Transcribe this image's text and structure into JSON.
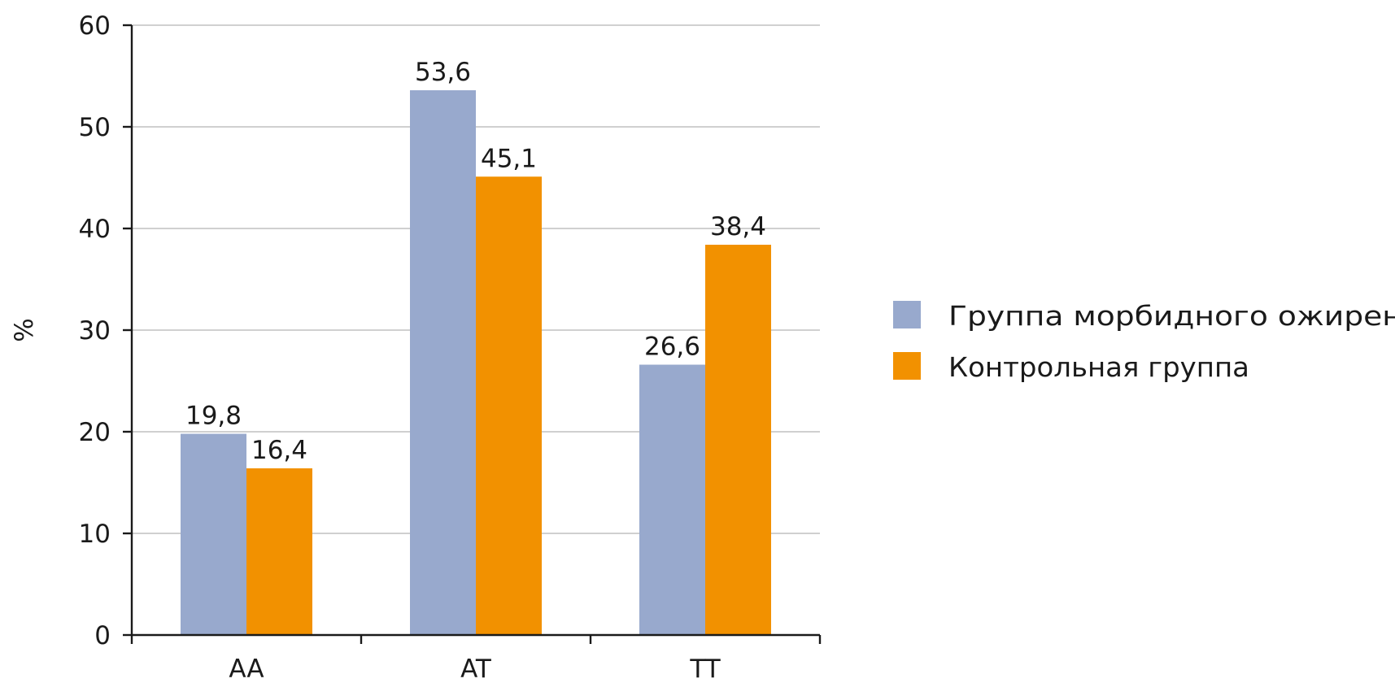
{
  "chart_data": {
    "type": "bar",
    "title": "",
    "xlabel": "",
    "ylabel": "%",
    "categories": [
      "AA",
      "AT",
      "TT"
    ],
    "series": [
      {
        "name": "Группа морбидного ожирения",
        "values": [
          19.8,
          53.6,
          26.6
        ],
        "labels": [
          "19,8",
          "53,6",
          "26,6"
        ],
        "color": "#98A9CD"
      },
      {
        "name": "Контрольная группа",
        "values": [
          16.4,
          45.1,
          38.4
        ],
        "labels": [
          "16,4",
          "45,1",
          "38,4"
        ],
        "color": "#F29100"
      }
    ],
    "ylim": [
      0,
      60
    ],
    "yticks": [
      0,
      10,
      20,
      30,
      40,
      50,
      60
    ],
    "ytick_labels": [
      "0",
      "10",
      "20",
      "30",
      "40",
      "50",
      "60"
    ],
    "grid": true,
    "legend_position": "right"
  }
}
